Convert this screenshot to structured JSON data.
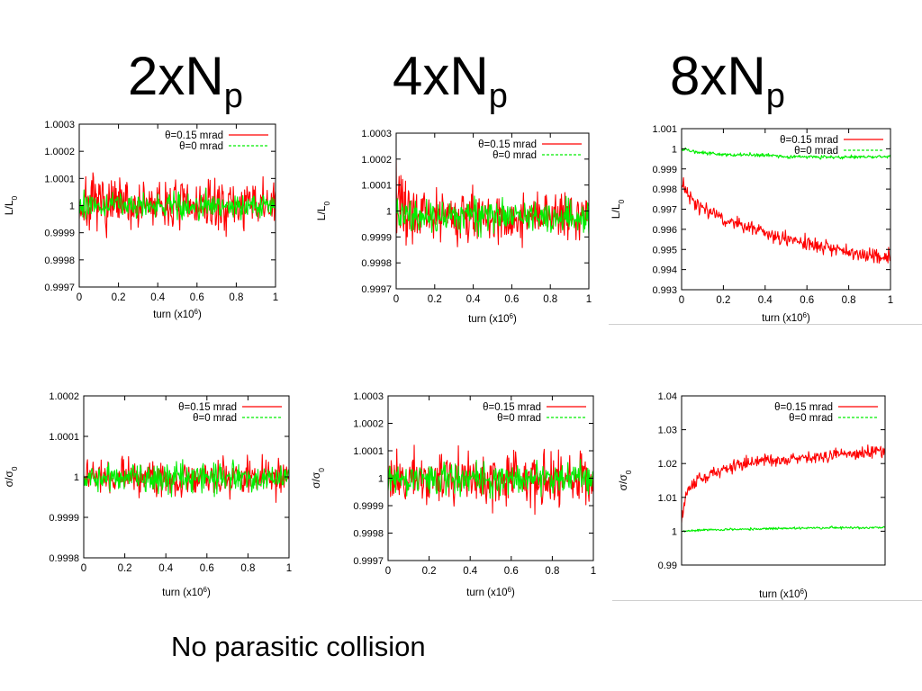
{
  "columns": [
    {
      "title": "2xN",
      "sub": "p"
    },
    {
      "title": "4xN",
      "sub": "p"
    },
    {
      "title": "8xN",
      "sub": "p"
    }
  ],
  "footer": "No parasitic collision",
  "colors": {
    "red": "#ff0000",
    "green": "#00ee00"
  },
  "chart_data": [
    {
      "type": "line",
      "panel": "2xNp luminosity",
      "ylabel": "L/L0",
      "xlabel": "turn (x10^6)",
      "xlim": [
        0,
        1
      ],
      "ylim": [
        0.9997,
        1.0003
      ],
      "x_ticks": [
        "0",
        "0.2",
        "0.4",
        "0.6",
        "0.8",
        "1"
      ],
      "y_ticks": [
        "0.9997",
        "0.9998",
        "0.9999",
        "1",
        "1.0001",
        "1.0002",
        "1.0003"
      ],
      "legend": "top-right",
      "series": [
        {
          "name": "θ=0.15 mrad",
          "color": "#ff0000",
          "x": [
            0,
            0.1,
            0.2,
            0.3,
            0.4,
            0.5,
            0.6,
            0.7,
            0.8,
            0.9,
            1.0
          ],
          "y_center": [
            1.0,
            1.0,
            1.0,
            1.0,
            1.0,
            1.0,
            1.0,
            1.0,
            1.0,
            1.0,
            1.0
          ],
          "y_halfwidth": [
            0.00012,
            0.00011,
            0.00011,
            0.0001,
            0.0001,
            0.0001,
            0.0001,
            0.0001,
            0.0001,
            0.0001,
            0.0001
          ]
        },
        {
          "name": "θ=0 mrad",
          "color": "#00ee00",
          "x": [
            0,
            0.1,
            0.2,
            0.3,
            0.4,
            0.5,
            0.6,
            0.7,
            0.8,
            0.9,
            1.0
          ],
          "y_center": [
            1.0,
            1.0,
            1.0,
            1.0,
            1.0,
            1.0,
            1.0,
            1.0,
            1.0,
            1.0,
            1.0
          ],
          "y_halfwidth": [
            5e-05,
            5e-05,
            5e-05,
            5e-05,
            5e-05,
            5e-05,
            5e-05,
            5e-05,
            5e-05,
            5e-05,
            5e-05
          ]
        }
      ]
    },
    {
      "type": "line",
      "panel": "4xNp luminosity",
      "ylabel": "L/L0",
      "xlabel": "turn (x10^6)",
      "xlim": [
        0,
        1
      ],
      "ylim": [
        0.9997,
        1.0003
      ],
      "x_ticks": [
        "0",
        "0.2",
        "0.4",
        "0.6",
        "0.8",
        "1"
      ],
      "y_ticks": [
        "0.9997",
        "0.9998",
        "0.9999",
        "1",
        "1.0001",
        "1.0002",
        "1.0003"
      ],
      "legend": "top-right",
      "series": [
        {
          "name": "θ=0.15 mrad",
          "color": "#ff0000",
          "x": [
            0,
            0.1,
            0.2,
            0.3,
            0.4,
            0.5,
            0.6,
            0.7,
            0.8,
            0.9,
            1.0
          ],
          "y_center": [
            1.00003,
            1.0,
            0.99999,
            0.99998,
            0.99998,
            0.99998,
            0.99998,
            0.99998,
            0.99998,
            0.99998,
            0.99998
          ],
          "y_halfwidth": [
            0.00016,
            0.00012,
            0.0001,
            0.0001,
            0.0001,
            0.0001,
            0.0001,
            0.0001,
            0.0001,
            0.0001,
            0.0001
          ]
        },
        {
          "name": "θ=0 mrad",
          "color": "#00ee00",
          "x": [
            0,
            0.1,
            0.2,
            0.3,
            0.4,
            0.5,
            0.6,
            0.7,
            0.8,
            0.9,
            1.0
          ],
          "y_center": [
            0.99998,
            0.99998,
            0.99998,
            0.99998,
            0.99998,
            0.99998,
            0.99998,
            0.99998,
            0.99998,
            0.99998,
            0.99998
          ],
          "y_halfwidth": [
            7e-05,
            7e-05,
            7e-05,
            7e-05,
            7e-05,
            7e-05,
            7e-05,
            7e-05,
            7e-05,
            7e-05,
            7e-05
          ]
        }
      ]
    },
    {
      "type": "line",
      "panel": "8xNp luminosity",
      "ylabel": "L/L0",
      "xlabel": "turn (x10^6)",
      "xlim": [
        0,
        1
      ],
      "ylim": [
        0.993,
        1.001
      ],
      "x_ticks": [
        "0",
        "0.2",
        "0.4",
        "0.6",
        "0.8",
        "1"
      ],
      "y_ticks": [
        "0.993",
        "0.994",
        "0.995",
        "0.996",
        "0.997",
        "0.998",
        "0.999",
        "1",
        "1.001"
      ],
      "legend": "top-right",
      "series": [
        {
          "name": "θ=0.15 mrad",
          "color": "#ff0000",
          "x": [
            0,
            0.05,
            0.1,
            0.2,
            0.3,
            0.4,
            0.5,
            0.6,
            0.7,
            0.8,
            0.9,
            1.0
          ],
          "y_center": [
            0.9983,
            0.9975,
            0.997,
            0.9965,
            0.9962,
            0.9958,
            0.9955,
            0.9953,
            0.9951,
            0.9949,
            0.9947,
            0.9946
          ],
          "y_halfwidth": [
            0.0004,
            0.0004,
            0.0004,
            0.0004,
            0.0004,
            0.0004,
            0.0004,
            0.0004,
            0.0004,
            0.0004,
            0.0004,
            0.0004
          ]
        },
        {
          "name": "θ=0 mrad",
          "color": "#00ee00",
          "x": [
            0,
            0.1,
            0.2,
            0.3,
            0.4,
            0.5,
            0.6,
            0.7,
            0.8,
            0.9,
            1.0
          ],
          "y_center": [
            1.0,
            0.9998,
            0.9997,
            0.9997,
            0.9997,
            0.9996,
            0.9996,
            0.9996,
            0.9996,
            0.9996,
            0.9996
          ],
          "y_halfwidth": [
            0.0001,
            0.0001,
            0.0001,
            0.0001,
            0.0001,
            0.0001,
            0.0001,
            0.0001,
            0.0001,
            0.0001,
            0.0001
          ]
        }
      ]
    },
    {
      "type": "line",
      "panel": "2xNp beam size",
      "ylabel": "σ/σ0",
      "xlabel": "turn (x10^6)",
      "xlim": [
        0,
        1
      ],
      "ylim": [
        0.9998,
        1.0002
      ],
      "x_ticks": [
        "0",
        "0.2",
        "0.4",
        "0.6",
        "0.8",
        "1"
      ],
      "y_ticks": [
        "0.9998",
        "0.9999",
        "1",
        "1.0001",
        "1.0002"
      ],
      "legend": "top-right",
      "series": [
        {
          "name": "θ=0.15 mrad",
          "color": "#ff0000",
          "x": [
            0,
            0.1,
            0.2,
            0.3,
            0.4,
            0.5,
            0.6,
            0.7,
            0.8,
            0.9,
            1.0
          ],
          "y_center": [
            1.0,
            1.0,
            1.0,
            1.0,
            1.0,
            1.0,
            1.0,
            1.0,
            1.0,
            1.0,
            1.0
          ],
          "y_halfwidth": [
            5e-05,
            5e-05,
            5e-05,
            5e-05,
            5e-05,
            5e-05,
            5e-05,
            5e-05,
            5e-05,
            5e-05,
            5e-05
          ]
        },
        {
          "name": "θ=0 mrad",
          "color": "#00ee00",
          "x": [
            0,
            0.1,
            0.2,
            0.3,
            0.4,
            0.5,
            0.6,
            0.7,
            0.8,
            0.9,
            1.0
          ],
          "y_center": [
            1.0,
            1.0,
            1.0,
            1.0,
            1.0,
            1.0,
            1.0,
            1.0,
            1.0,
            1.0,
            1.0
          ],
          "y_halfwidth": [
            4e-05,
            4e-05,
            4e-05,
            4e-05,
            4e-05,
            4e-05,
            4e-05,
            4e-05,
            4e-05,
            4e-05,
            4e-05
          ]
        }
      ]
    },
    {
      "type": "line",
      "panel": "4xNp beam size",
      "ylabel": "σ/σ0",
      "xlabel": "turn (x10^6)",
      "xlim": [
        0,
        1
      ],
      "ylim": [
        0.9997,
        1.0003
      ],
      "x_ticks": [
        "0",
        "0.2",
        "0.4",
        "0.6",
        "0.8",
        "1"
      ],
      "y_ticks": [
        "0.9997",
        "0.9998",
        "0.9999",
        "1",
        "1.0001",
        "1.0002",
        "1.0003"
      ],
      "legend": "top-right",
      "series": [
        {
          "name": "θ=0.15 mrad",
          "color": "#ff0000",
          "x": [
            0,
            0.1,
            0.2,
            0.3,
            0.4,
            0.5,
            0.6,
            0.7,
            0.8,
            0.9,
            1.0
          ],
          "y_center": [
            1.0,
            1.0,
            1.0,
            1.0,
            1.0,
            1.0,
            1.0,
            1.0,
            1.0,
            1.0,
            1.0
          ],
          "y_halfwidth": [
            0.00011,
            0.00011,
            0.00011,
            0.00011,
            0.00011,
            0.00011,
            0.00011,
            0.00011,
            0.00011,
            0.00011,
            0.00011
          ]
        },
        {
          "name": "θ=0 mrad",
          "color": "#00ee00",
          "x": [
            0,
            0.1,
            0.2,
            0.3,
            0.4,
            0.5,
            0.6,
            0.7,
            0.8,
            0.9,
            1.0
          ],
          "y_center": [
            1.0,
            1.0,
            1.0,
            1.0,
            1.0,
            1.0,
            1.0,
            1.0,
            1.0,
            1.0,
            1.0
          ],
          "y_halfwidth": [
            6e-05,
            6e-05,
            6e-05,
            6e-05,
            6e-05,
            6e-05,
            6e-05,
            6e-05,
            6e-05,
            6e-05,
            6e-05
          ]
        }
      ]
    },
    {
      "type": "line",
      "panel": "8xNp beam size",
      "ylabel": "σ/σ0",
      "xlabel": "turn (x10^6)",
      "xlim": [
        0,
        1
      ],
      "ylim": [
        0.99,
        1.04
      ],
      "x_ticks": [],
      "y_ticks": [
        "0.99",
        "1",
        "1.01",
        "1.02",
        "1.03",
        "1.04"
      ],
      "legend": "top-right",
      "series": [
        {
          "name": "θ=0.15 mrad",
          "color": "#ff0000",
          "x": [
            0,
            0.02,
            0.05,
            0.1,
            0.2,
            0.3,
            0.4,
            0.5,
            0.6,
            0.7,
            0.8,
            0.9,
            1.0
          ],
          "y_center": [
            1.003,
            1.011,
            1.014,
            1.016,
            1.018,
            1.02,
            1.021,
            1.021,
            1.022,
            1.022,
            1.023,
            1.023,
            1.024
          ],
          "y_halfwidth": [
            0.002,
            0.002,
            0.002,
            0.002,
            0.002,
            0.002,
            0.002,
            0.002,
            0.002,
            0.002,
            0.002,
            0.002,
            0.002
          ]
        },
        {
          "name": "θ=0 mrad",
          "color": "#00ee00",
          "x": [
            0,
            0.1,
            0.2,
            0.3,
            0.4,
            0.5,
            0.6,
            0.7,
            0.8,
            0.9,
            1.0
          ],
          "y_center": [
            1.0,
            1.0003,
            1.0005,
            1.0006,
            1.0007,
            1.0008,
            1.0009,
            1.001,
            1.001,
            1.001,
            1.0011
          ],
          "y_halfwidth": [
            0.0004,
            0.0004,
            0.0004,
            0.0004,
            0.0004,
            0.0004,
            0.0004,
            0.0004,
            0.0004,
            0.0004,
            0.0004
          ]
        }
      ]
    }
  ]
}
